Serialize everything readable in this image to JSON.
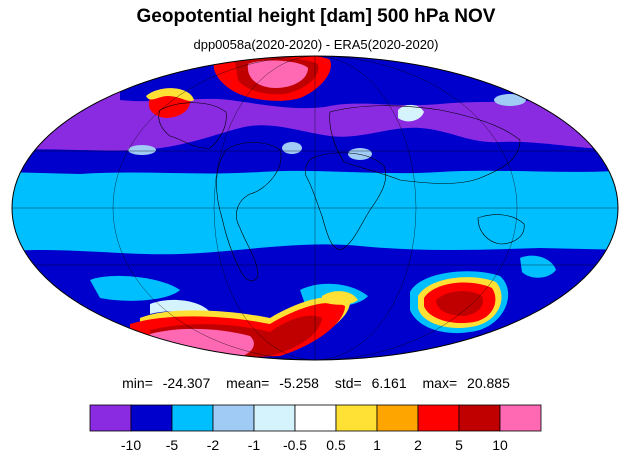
{
  "title": "Geopotential height [dam] 500 hPa NOV",
  "subtitle": "dpp0058a(2020-2020) - ERA5(2020-2020)",
  "stats": {
    "min_label": "min=",
    "min_value": "-24.307",
    "mean_label": "mean=",
    "mean_value": "-5.258",
    "std_label": "std=",
    "std_value": "6.161",
    "max_label": "max=",
    "max_value": "20.885"
  },
  "legend": {
    "colors": [
      "#8a2be2",
      "#0000cd",
      "#00bfff",
      "#9fcbf5",
      "#d4f3fc",
      "#ffffff",
      "#ffe135",
      "#ffa500",
      "#ff0000",
      "#c00000",
      "#ff69b4"
    ],
    "tick_labels": [
      "-10",
      "-5",
      "-2",
      "-1",
      "-0.5",
      "0.5",
      "1",
      "2",
      "5",
      "10"
    ]
  },
  "map": {
    "projection": "Mollweide",
    "field_colors": {
      "purple": "#8a2be2",
      "blue": "#0000cd",
      "cyan": "#00bfff",
      "lightblue": "#9fcbf5",
      "paleblue": "#d4f3fc",
      "white": "#ffffff",
      "yellow": "#ffe135",
      "orange": "#ffa500",
      "red": "#ff0000",
      "darkred": "#c00000",
      "pink": "#ff69b4"
    }
  }
}
